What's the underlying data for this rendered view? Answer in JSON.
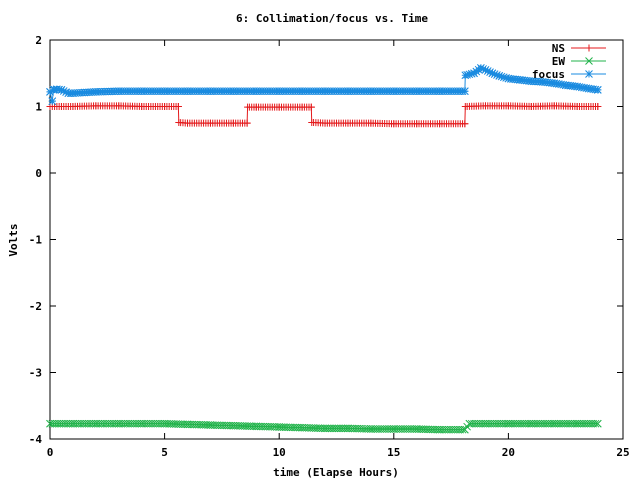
{
  "chart_data": {
    "type": "line",
    "title": "6: Collimation/focus vs. Time",
    "xlabel": "time (Elapse Hours)",
    "ylabel": "Volts",
    "xlim": [
      0,
      25
    ],
    "ylim": [
      -4,
      2
    ],
    "xticks": [
      0,
      5,
      10,
      15,
      20,
      25
    ],
    "yticks": [
      -4,
      -3,
      -2,
      -1,
      0,
      1,
      2
    ],
    "grid": false,
    "legend_position": "top-right",
    "series": [
      {
        "name": "NS",
        "color": "#e41a1c",
        "marker": "plus",
        "x": [
          0,
          0.5,
          1,
          2,
          3,
          4,
          5,
          5.6,
          5.62,
          6,
          7,
          8,
          8.6,
          8.62,
          9,
          10,
          11,
          11.4,
          11.42,
          12,
          13,
          14,
          15,
          16,
          17,
          18.1,
          18.12,
          19,
          20,
          21,
          22,
          23,
          23.9
        ],
        "y": [
          1.0,
          1.0,
          1.0,
          1.01,
          1.01,
          1.0,
          1.0,
          1.0,
          0.76,
          0.75,
          0.75,
          0.75,
          0.75,
          0.99,
          0.99,
          0.99,
          0.99,
          0.99,
          0.76,
          0.75,
          0.75,
          0.75,
          0.74,
          0.74,
          0.74,
          0.74,
          1.0,
          1.01,
          1.01,
          1.0,
          1.01,
          1.0,
          1.0
        ]
      },
      {
        "name": "EW",
        "color": "#22b34b",
        "marker": "cross",
        "x": [
          0,
          1,
          2,
          3,
          4,
          5,
          6,
          7,
          8,
          9,
          10,
          11,
          12,
          13,
          14,
          15,
          16,
          17,
          18.1,
          18.3,
          19,
          20,
          21,
          22,
          23,
          23.9
        ],
        "y": [
          -3.77,
          -3.77,
          -3.77,
          -3.77,
          -3.77,
          -3.77,
          -3.78,
          -3.79,
          -3.8,
          -3.81,
          -3.82,
          -3.83,
          -3.84,
          -3.84,
          -3.85,
          -3.85,
          -3.85,
          -3.86,
          -3.86,
          -3.77,
          -3.77,
          -3.77,
          -3.77,
          -3.77,
          -3.77,
          -3.77
        ]
      },
      {
        "name": "focus",
        "color": "#1a8be0",
        "marker": "star",
        "x": [
          0,
          0.1,
          0.15,
          0.3,
          0.5,
          0.8,
          1,
          1.5,
          2,
          3,
          4,
          5,
          6,
          7,
          8,
          9,
          10,
          11,
          12,
          13,
          14,
          15,
          16,
          17,
          18.1,
          18.12,
          18.5,
          18.8,
          19,
          19.3,
          19.6,
          20,
          20.5,
          21,
          21.5,
          22,
          22.5,
          23,
          23.5,
          23.9
        ],
        "y": [
          1.22,
          1.08,
          1.25,
          1.26,
          1.25,
          1.2,
          1.2,
          1.21,
          1.22,
          1.23,
          1.23,
          1.23,
          1.23,
          1.23,
          1.23,
          1.23,
          1.23,
          1.23,
          1.23,
          1.23,
          1.23,
          1.23,
          1.23,
          1.23,
          1.23,
          1.47,
          1.5,
          1.58,
          1.55,
          1.5,
          1.46,
          1.42,
          1.4,
          1.38,
          1.37,
          1.35,
          1.32,
          1.3,
          1.27,
          1.25
        ]
      }
    ]
  }
}
